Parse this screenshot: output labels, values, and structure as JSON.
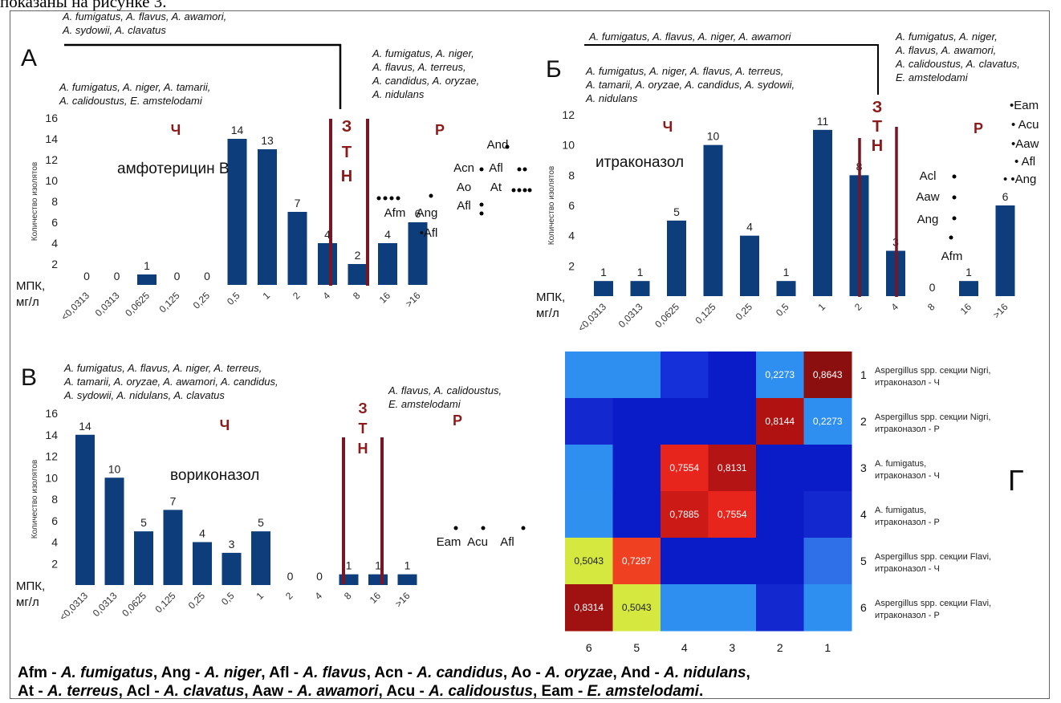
{
  "page": {
    "top_text": "показаны на рисунке 3."
  },
  "labels": {
    "mpk_line1": "МПК,",
    "mpk_line2": "мг/л",
    "y_axis": "Количество изолятов"
  },
  "zones": {
    "ch": "Ч",
    "z": "З",
    "t": "Т",
    "n": "Н",
    "r": "Р"
  },
  "colors": {
    "bar": "#0d3d7a",
    "zone_text": "#8b1a1a",
    "divider": "#7a1523"
  },
  "panels": {
    "A": {
      "letter": "А",
      "drug": "амфотерицин В",
      "species_top": [
        "A. fumigatus, A. flavus, A. awamori,",
        "A. sydowii, A. clavatus"
      ],
      "species_ch": [
        "A. fumigatus, A. niger, A. tamarii,",
        "A. calidoustus, E. amstelodami"
      ],
      "species_r": [
        "A. fumigatus, A. niger,",
        "A. flavus, A. terreus,",
        "A. candidus, A. oryzae,",
        "A. nidulans"
      ],
      "species_codes": [
        {
          "text": "Afm"
        },
        {
          "text": "Ang"
        },
        {
          "text": "•Afl"
        },
        {
          "text": "Afl"
        },
        {
          "text": "Ao"
        },
        {
          "text": "Acn"
        },
        {
          "text": "Afl"
        },
        {
          "text": "At"
        },
        {
          "text": "And"
        }
      ]
    },
    "B": {
      "letter": "Б",
      "drug": "итраконазол",
      "species_top": [
        "A. fumigatus, A. flavus, A. niger, A. awamori"
      ],
      "species_ch": [
        "A. fumigatus, A. niger, A. flavus, A. terreus,",
        "A. tamarii, A. oryzae, A. candidus, A. sydowii,",
        "A. nidulans"
      ],
      "species_r": [
        "A. fumigatus, A. niger,",
        "A. flavus, A. awamori,",
        "A. calidoustus, A. clavatus,",
        "E. amstelodami"
      ],
      "species_codes": [
        {
          "text": "Acl"
        },
        {
          "text": "Aaw"
        },
        {
          "text": "Ang"
        },
        {
          "text": "Afm"
        },
        {
          "text": "•Eam"
        },
        {
          "text": "• Acu"
        },
        {
          "text": "•Aaw"
        },
        {
          "text": "• Afl"
        },
        {
          "text": "• •Ang"
        }
      ]
    },
    "V": {
      "letter": "В",
      "drug": "вориконазол",
      "species_ch": [
        "A. fumigatus, A. flavus, A. niger, A. terreus,",
        "A. tamarii, A. oryzae, A. awamori, A. candidus,",
        "A. sydowii, A. nidulans, A. clavatus"
      ],
      "species_r": [
        "A. flavus, A. calidoustus,",
        "E. amstelodami"
      ],
      "species_codes": [
        {
          "text": "Eam"
        },
        {
          "text": "Acu"
        },
        {
          "text": "Afl"
        }
      ]
    },
    "G": {
      "letter": "Г"
    }
  },
  "chart_data": [
    {
      "type": "bar",
      "panel": "А",
      "categories": [
        "<0,0313",
        "0,0313",
        "0,0625",
        "0,125",
        "0,25",
        "0,5",
        "1",
        "2",
        "4",
        "8",
        "16",
        ">16"
      ],
      "values": [
        0,
        0,
        1,
        0,
        0,
        14,
        13,
        7,
        4,
        2,
        4,
        6
      ],
      "ylim": [
        0,
        16
      ],
      "yticks": [
        "2",
        "4",
        "6",
        "8",
        "10",
        "12",
        "14",
        "16"
      ],
      "ylabel": "Количество изолятов"
    },
    {
      "type": "bar",
      "panel": "Б",
      "categories": [
        "<0,0313",
        "0,0313",
        "0,0625",
        "0,125",
        "0,25",
        "0,5",
        "1",
        "2",
        "4",
        "8",
        "16",
        ">16"
      ],
      "values": [
        1,
        1,
        5,
        10,
        4,
        1,
        11,
        8,
        3,
        0,
        1,
        6
      ],
      "ylim": [
        0,
        12
      ],
      "yticks": [
        "2",
        "4",
        "6",
        "8",
        "10",
        "12"
      ],
      "ylabel": "Количество изолятов"
    },
    {
      "type": "bar",
      "panel": "В",
      "categories": [
        "<0,0313",
        "0,0313",
        "0,0625",
        "0,125",
        "0,25",
        "0,5",
        "1",
        "2",
        "4",
        "8",
        "16",
        ">16"
      ],
      "values": [
        14,
        10,
        5,
        7,
        4,
        3,
        5,
        0,
        0,
        1,
        1,
        1
      ],
      "ylim": [
        0,
        16
      ],
      "yticks": [
        "2",
        "4",
        "6",
        "8",
        "10",
        "12",
        "14",
        "16"
      ],
      "ylabel": "Количество изолятов"
    },
    {
      "type": "heatmap",
      "panel": "Г",
      "x_labels": [
        "6",
        "5",
        "4",
        "3",
        "2",
        "1"
      ],
      "rows": [
        {
          "index": "1",
          "label": [
            "Aspergillus spp. секции Nigri,",
            "итраконазол - Ч"
          ]
        },
        {
          "index": "2",
          "label": [
            "Aspergillus spp. секции Nigri,",
            "итраконазол - Р"
          ]
        },
        {
          "index": "3",
          "label": [
            "A. fumigatus,",
            "итраконазол - Ч"
          ]
        },
        {
          "index": "4",
          "label": [
            "A. fumigatus,",
            "итраконазол - Р"
          ]
        },
        {
          "index": "5",
          "label": [
            "Aspergillus spp. секции Flavi,",
            "итраконазол - Ч"
          ]
        },
        {
          "index": "6",
          "label": [
            "Aspergillus spp. секции Flavi,",
            "итраконазол - Р"
          ]
        }
      ],
      "cells": [
        [
          {
            "c": "#2f8ff0",
            "v": ""
          },
          {
            "c": "#2f8ff0",
            "v": ""
          },
          {
            "c": "#1530d8",
            "v": ""
          },
          {
            "c": "#0a1cc8",
            "v": ""
          },
          {
            "c": "#2f8ff0",
            "v": "0,2273"
          },
          {
            "c": "#8c0f0f",
            "v": "0,8643"
          }
        ],
        [
          {
            "c": "#1428d0",
            "v": ""
          },
          {
            "c": "#0a1cc8",
            "v": ""
          },
          {
            "c": "#0a1cc8",
            "v": ""
          },
          {
            "c": "#0a1cc8",
            "v": ""
          },
          {
            "c": "#b01212",
            "v": "0,8144"
          },
          {
            "c": "#2f8ff0",
            "v": "0,2273"
          }
        ],
        [
          {
            "c": "#2f8ff0",
            "v": ""
          },
          {
            "c": "#0a1cc8",
            "v": ""
          },
          {
            "c": "#e8251c",
            "v": "0,7554"
          },
          {
            "c": "#b51414",
            "v": "0,8131"
          },
          {
            "c": "#0a1cc8",
            "v": ""
          },
          {
            "c": "#0a1cc8",
            "v": ""
          }
        ],
        [
          {
            "c": "#3090f0",
            "v": ""
          },
          {
            "c": "#0a1cc8",
            "v": ""
          },
          {
            "c": "#cc1a16",
            "v": "0,7885"
          },
          {
            "c": "#e8251c",
            "v": "0,7554"
          },
          {
            "c": "#0a1cc8",
            "v": ""
          },
          {
            "c": "#1428d0",
            "v": ""
          }
        ],
        [
          {
            "c": "#d4e840",
            "v": "0,5043"
          },
          {
            "c": "#f04022",
            "v": "0,7287"
          },
          {
            "c": "#0a1cc8",
            "v": ""
          },
          {
            "c": "#0a1cc8",
            "v": ""
          },
          {
            "c": "#0a1cc8",
            "v": ""
          },
          {
            "c": "#2f70e8",
            "v": ""
          }
        ],
        [
          {
            "c": "#a01212",
            "v": "0,8314"
          },
          {
            "c": "#d4e840",
            "v": "0,5043"
          },
          {
            "c": "#2f8ff0",
            "v": ""
          },
          {
            "c": "#2f8ff0",
            "v": ""
          },
          {
            "c": "#1428d0",
            "v": ""
          },
          {
            "c": "#2f8ff0",
            "v": ""
          }
        ]
      ]
    }
  ],
  "legend": {
    "line1": [
      {
        "b": "Afm - ",
        "i": "A. fumigatus"
      },
      {
        "b": ", Ang - ",
        "i": "A. niger"
      },
      {
        "b": ", Afl - ",
        "i": "A. flavus"
      },
      {
        "b": ", Acn - ",
        "i": "A. candidus"
      },
      {
        "b": ", Ao - ",
        "i": "A. oryzae"
      },
      {
        "b": ", And - ",
        "i": "A. nidulans"
      },
      {
        "b": ",",
        "i": ""
      }
    ],
    "line2": [
      {
        "b": "At - ",
        "i": "A. terreus"
      },
      {
        "b": ", Acl - ",
        "i": "A. clavatus"
      },
      {
        "b": ", Aaw - ",
        "i": "A. awamori"
      },
      {
        "b": ", Acu - ",
        "i": "A. calidoustus"
      },
      {
        "b": ", Eam - ",
        "i": "E. amstelodami"
      },
      {
        "b": ".",
        "i": ""
      }
    ]
  }
}
